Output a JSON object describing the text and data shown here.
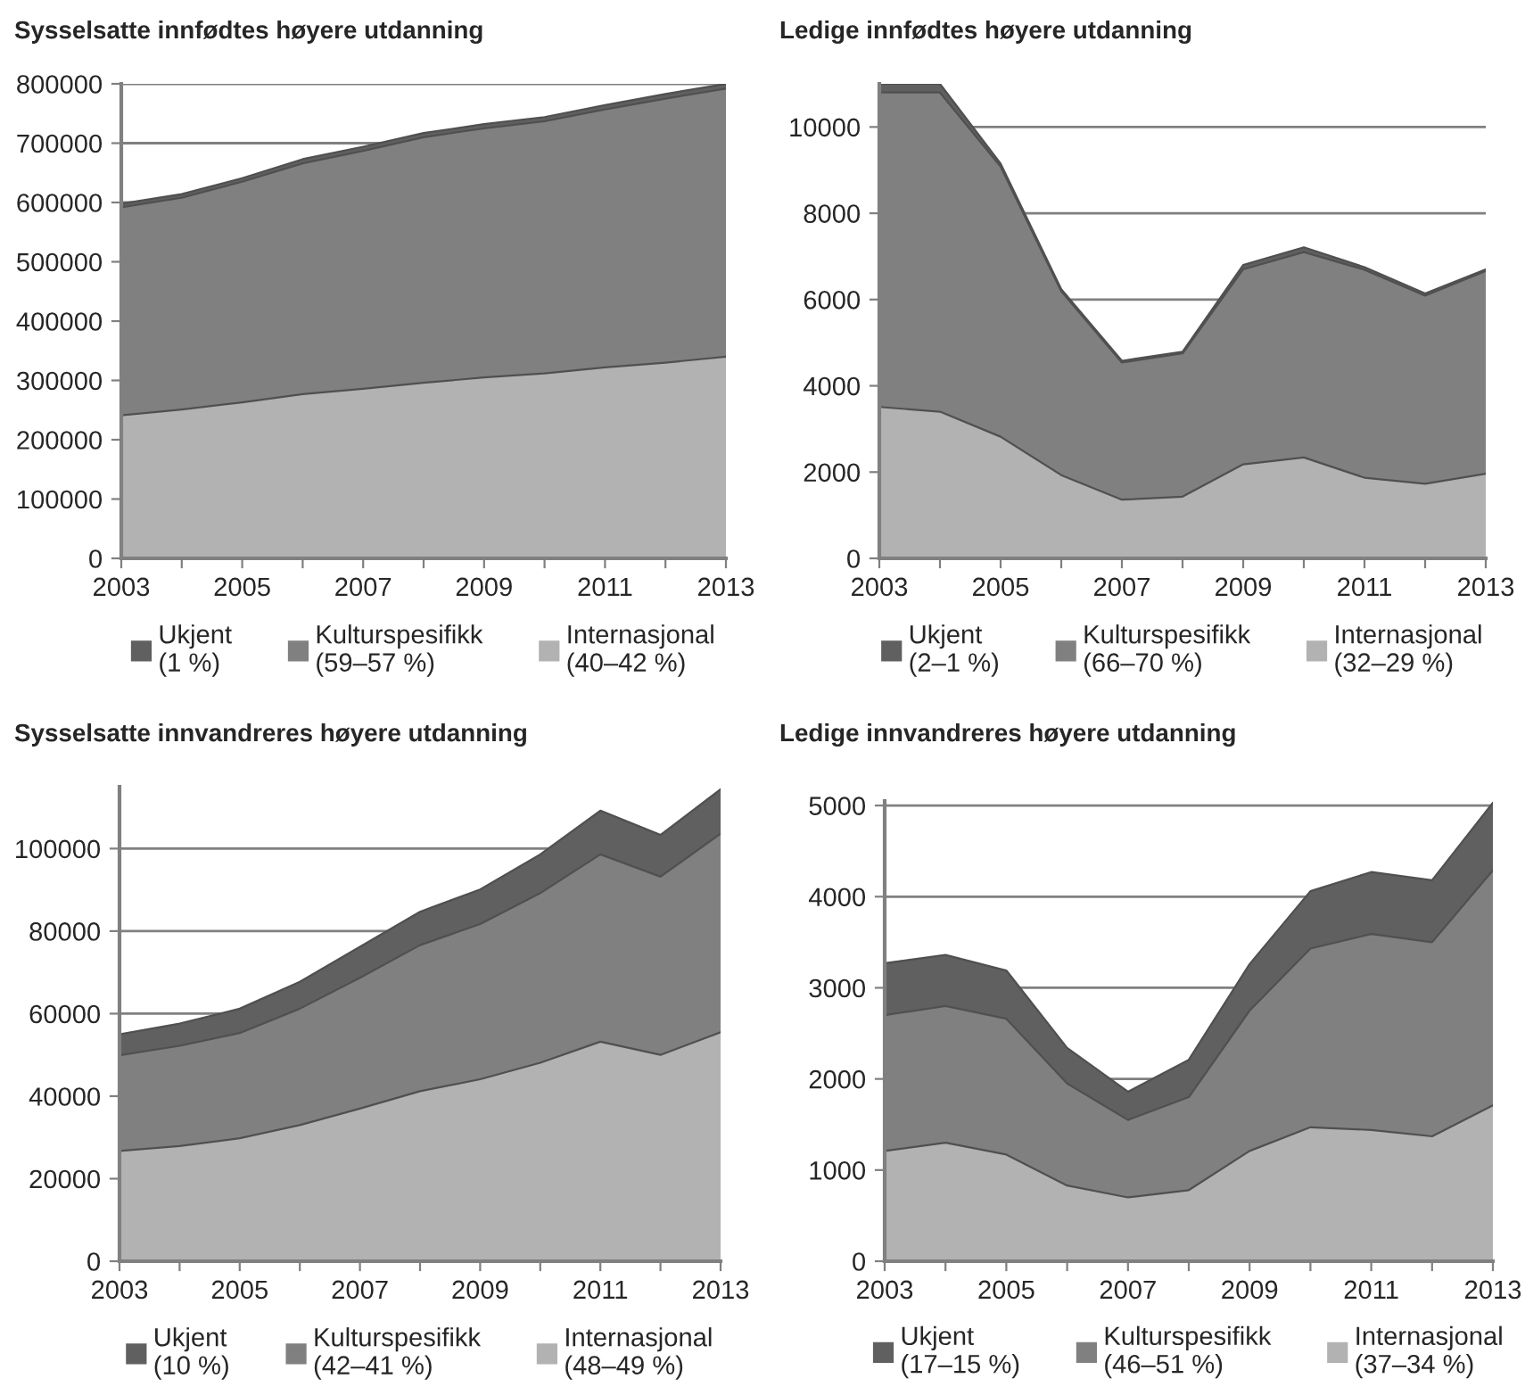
{
  "chart_data": [
    {
      "type": "area",
      "stacked": true,
      "title": "Sysselsatte innfødtes høyere utdanning",
      "x": [
        2003,
        2004,
        2005,
        2006,
        2007,
        2008,
        2009,
        2010,
        2011,
        2012,
        2013
      ],
      "series": [
        {
          "name": "Internasjonal\n(40–42 %)",
          "color": "#b2b2b2",
          "values": [
            241000,
            251000,
            263000,
            277000,
            286000,
            296000,
            305000,
            312000,
            322000,
            330000,
            340000
          ]
        },
        {
          "name": "Kulturspesifikk\n(59–57 %)",
          "color": "#808080",
          "values": [
            351000,
            357000,
            372000,
            389000,
            401000,
            414000,
            420000,
            425000,
            435000,
            445000,
            452000
          ]
        },
        {
          "name": "Ukjent\n(1 %)",
          "color": "#606060",
          "values": [
            6000,
            6000,
            6000,
            7000,
            7000,
            7000,
            7000,
            7000,
            7000,
            8000,
            8000
          ]
        }
      ],
      "xlim": [
        2003,
        2013
      ],
      "xticks": [
        2003,
        {
          "value": 2004,
          "label": null
        },
        2005,
        {
          "value": 2006,
          "label": null
        },
        2007,
        {
          "value": 2008,
          "label": null
        },
        2009,
        {
          "value": 2010,
          "label": null
        },
        2011,
        {
          "value": 2012,
          "label": null
        },
        2013
      ],
      "ylim": [
        0,
        800000
      ],
      "yticks": [
        0,
        100000,
        200000,
        300000,
        400000,
        500000,
        600000,
        700000,
        800000
      ],
      "grid": "y",
      "legend": "bottom"
    },
    {
      "type": "area",
      "stacked": true,
      "title": "Ledige innfødtes høyere utdanning",
      "x": [
        2003,
        2004,
        2005,
        2006,
        2007,
        2008,
        2009,
        2010,
        2011,
        2012,
        2013
      ],
      "series": [
        {
          "name": "Internasjonal\n(32–29 %)",
          "color": "#b2b2b2",
          "values": [
            3510,
            3400,
            2820,
            1930,
            1360,
            1430,
            2180,
            2340,
            1870,
            1730,
            1960
          ]
        },
        {
          "name": "Kulturspesifikk\n(66–70 %)",
          "color": "#808080",
          "values": [
            7290,
            7400,
            6260,
            4260,
            3180,
            3320,
            4520,
            4760,
            4820,
            4360,
            4700
          ]
        },
        {
          "name": "Ukjent\n(2–1 %)",
          "color": "#606060",
          "values": [
            200,
            200,
            70,
            50,
            40,
            40,
            100,
            110,
            60,
            50,
            40
          ]
        }
      ],
      "xlim": [
        2003,
        2013
      ],
      "xticks": [
        2003,
        {
          "value": 2004,
          "label": null
        },
        2005,
        {
          "value": 2006,
          "label": null
        },
        2007,
        {
          "value": 2008,
          "label": null
        },
        2009,
        {
          "value": 2010,
          "label": null
        },
        2011,
        {
          "value": 2012,
          "label": null
        },
        2013
      ],
      "ylim": [
        0,
        11000
      ],
      "yticks": [
        0,
        2000,
        4000,
        6000,
        8000,
        10000
      ],
      "grid": "y",
      "legend": "bottom"
    },
    {
      "type": "area",
      "stacked": true,
      "title": "Sysselsatte innvandreres høyere utdanning",
      "x": [
        2003,
        2004,
        2005,
        2006,
        2007,
        2008,
        2009,
        2010,
        2011,
        2012,
        2013
      ],
      "series": [
        {
          "name": "Internasjonal\n(48–49 %)",
          "color": "#b2b2b2",
          "values": [
            26700,
            27900,
            29800,
            33000,
            37000,
            41200,
            44100,
            48100,
            53200,
            50000,
            55500
          ]
        },
        {
          "name": "Kulturspesifikk\n(42–41 %)",
          "color": "#808080",
          "values": [
            23200,
            24300,
            25500,
            28200,
            31700,
            35400,
            37600,
            41100,
            45400,
            43200,
            48100
          ]
        },
        {
          "name": "Ukjent\n(10 %)",
          "color": "#606060",
          "values": [
            5100,
            5400,
            5900,
            6500,
            7500,
            8100,
            8400,
            9400,
            10600,
            10100,
            10800
          ]
        }
      ],
      "xlim": [
        2003,
        2013
      ],
      "xticks": [
        2003,
        {
          "value": 2004,
          "label": null
        },
        2005,
        {
          "value": 2006,
          "label": null
        },
        2007,
        {
          "value": 2008,
          "label": null
        },
        2009,
        {
          "value": 2010,
          "label": null
        },
        2011,
        {
          "value": 2012,
          "label": null
        },
        2013
      ],
      "ylim": [
        0,
        115000
      ],
      "yticks": [
        0,
        20000,
        40000,
        60000,
        80000,
        100000
      ],
      "grid": "y",
      "legend": "bottom"
    },
    {
      "type": "area",
      "stacked": true,
      "title": "Ledige innvandreres høyere utdanning",
      "x": [
        2003,
        2004,
        2005,
        2006,
        2007,
        2008,
        2009,
        2010,
        2011,
        2012,
        2013
      ],
      "series": [
        {
          "name": "Internasjonal\n(37–34 %)",
          "color": "#b2b2b2",
          "values": [
            1210,
            1300,
            1170,
            830,
            700,
            780,
            1210,
            1470,
            1440,
            1370,
            1710
          ]
        },
        {
          "name": "Kulturspesifikk\n(46–51 %)",
          "color": "#808080",
          "values": [
            1490,
            1500,
            1490,
            1120,
            850,
            1020,
            1540,
            1960,
            2150,
            2130,
            2580
          ]
        },
        {
          "name": "Ukjent\n(17–15 %)",
          "color": "#606060",
          "values": [
            570,
            560,
            530,
            390,
            310,
            410,
            510,
            630,
            680,
            680,
            740
          ]
        }
      ],
      "xlim": [
        2003,
        2013
      ],
      "xticks": [
        2003,
        {
          "value": 2004,
          "label": null
        },
        2005,
        {
          "value": 2006,
          "label": null
        },
        2007,
        {
          "value": 2008,
          "label": null
        },
        2009,
        {
          "value": 2010,
          "label": null
        },
        2011,
        {
          "value": 2012,
          "label": null
        },
        2013
      ],
      "ylim": [
        0,
        5050
      ],
      "yticks": [
        0,
        1000,
        2000,
        3000,
        4000,
        5000
      ],
      "grid": "y",
      "legend": "bottom"
    }
  ]
}
